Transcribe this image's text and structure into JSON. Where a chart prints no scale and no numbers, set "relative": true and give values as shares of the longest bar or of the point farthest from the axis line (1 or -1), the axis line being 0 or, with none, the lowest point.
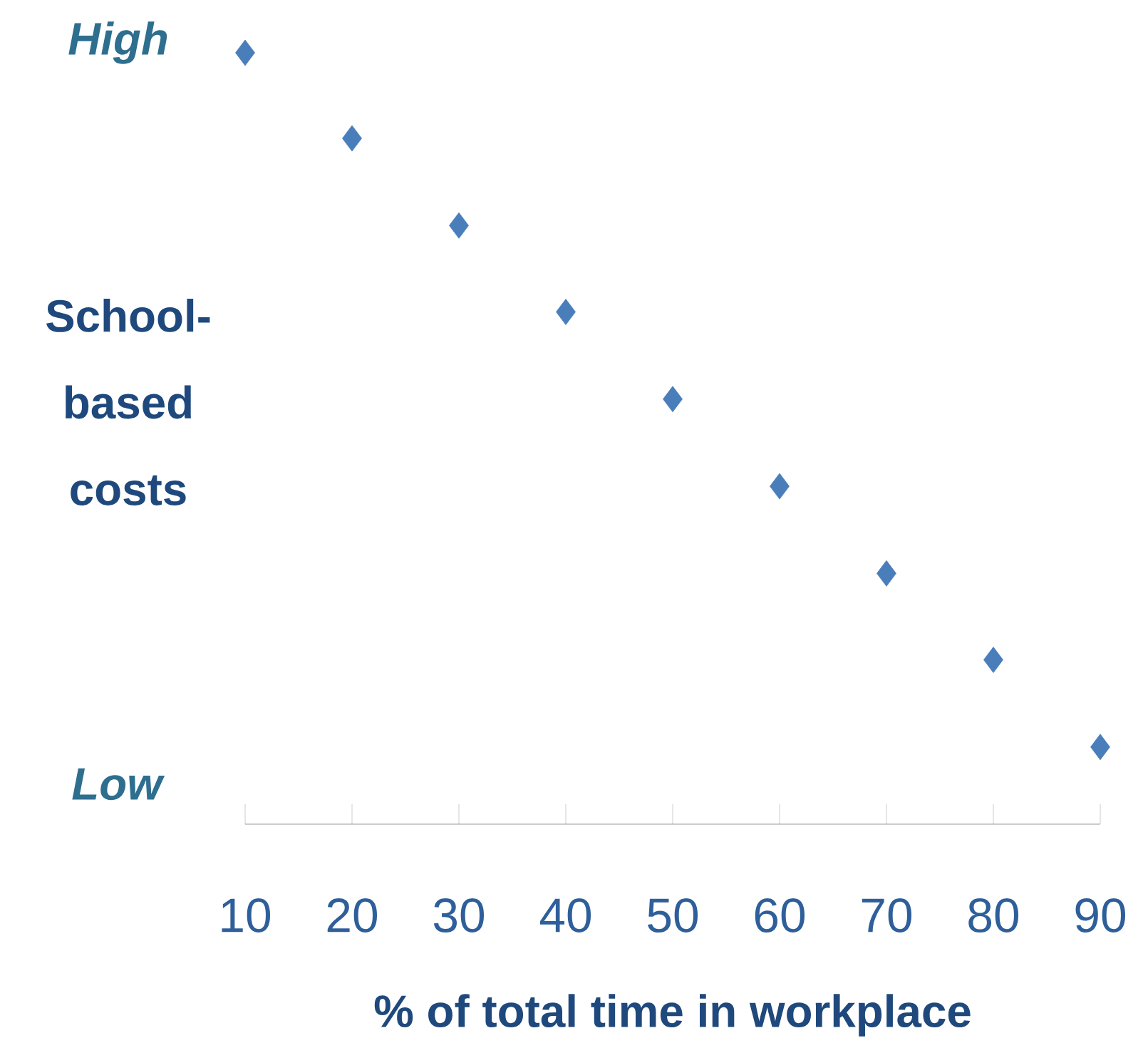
{
  "chart_data": {
    "type": "scatter",
    "relative": true,
    "marker": "diamond",
    "color": "#4a7ebb",
    "x": [
      10,
      20,
      30,
      40,
      50,
      60,
      70,
      80,
      90
    ],
    "values": [
      1,
      0.889,
      0.776,
      0.664,
      0.551,
      0.438,
      0.325,
      0.213,
      0.1
    ],
    "xlim": [
      10,
      90
    ],
    "xticks": [
      10,
      20,
      30,
      40,
      50,
      60,
      70,
      80,
      90
    ],
    "xlabel": "% of total time in workplace",
    "ylabel": "School-based costs",
    "annotations": [
      "High",
      "Low"
    ]
  }
}
